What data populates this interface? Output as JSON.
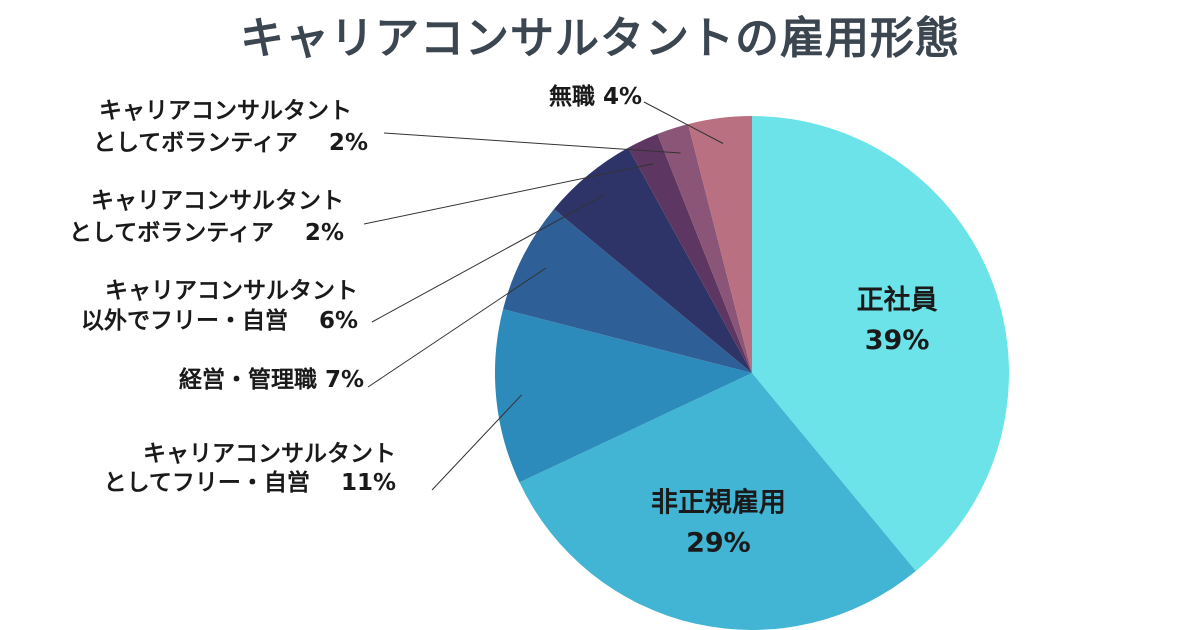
{
  "chart_data": {
    "type": "pie",
    "title": "キャリアコンサルタントの雇用形態",
    "slices": [
      {
        "name": "正社員",
        "pct_label": "39%",
        "value": 39,
        "color": "#6be3e8",
        "label_style": "inside"
      },
      {
        "name": "非正規雇用",
        "pct_label": "29%",
        "value": 29,
        "color": "#42b4d4",
        "label_style": "inside"
      },
      {
        "name": "キャリアコンサルタント\nとしてフリー・自営",
        "pct_label": "11%",
        "value": 11,
        "color": "#2d8bbb",
        "label_style": "outside"
      },
      {
        "name": "経営・管理職",
        "pct_label": "7%",
        "value": 7,
        "color": "#2e5f96",
        "label_style": "outside"
      },
      {
        "name": "キャリアコンサルタント\n以外でフリー・自営",
        "pct_label": "6%",
        "value": 6,
        "color": "#2f3468",
        "label_style": "outside"
      },
      {
        "name": "キャリアコンサルタント\nとしてボランティア",
        "pct_label": "2%",
        "value": 2,
        "color": "#5d3662",
        "label_style": "outside"
      },
      {
        "name": "キャリアコンサルタント\nとしてボランティア",
        "pct_label": "2%",
        "value": 2,
        "color": "#8b5577",
        "label_style": "outside"
      },
      {
        "name": "無職",
        "pct_label": "4%",
        "value": 4,
        "color": "#b97080",
        "label_style": "outside"
      }
    ]
  }
}
